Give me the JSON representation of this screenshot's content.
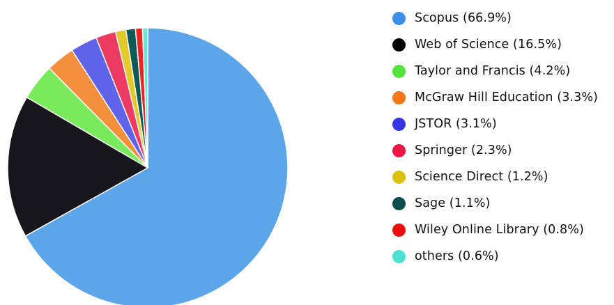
{
  "chart_data": {
    "type": "pie",
    "title": "",
    "legend_position": "right",
    "slices": [
      {
        "label": "Scopus (66.9%)",
        "value": 66.9,
        "color": "#5ca5e8",
        "legend_color": "#3a8fe6"
      },
      {
        "label": "Web of Science (16.5%)",
        "value": 16.5,
        "color": "#17161c",
        "legend_color": "#000000"
      },
      {
        "label": "Taylor and Francis (4.2%)",
        "value": 4.2,
        "color": "#78ea5c",
        "legend_color": "#52e33c"
      },
      {
        "label": "McGraw Hill Education (3.3%)",
        "value": 3.3,
        "color": "#f4903c",
        "legend_color": "#f77616"
      },
      {
        "label": "JSTOR (3.1%)",
        "value": 3.1,
        "color": "#5e63ea",
        "legend_color": "#3436e3"
      },
      {
        "label": "Springer (2.3%)",
        "value": 2.3,
        "color": "#ec3a63",
        "legend_color": "#ec1744"
      },
      {
        "label": "Science Direct (1.2%)",
        "value": 1.2,
        "color": "#e2c92c",
        "legend_color": "#dcc20f"
      },
      {
        "label": "Sage (1.1%)",
        "value": 1.1,
        "color": "#0e5a58",
        "legend_color": "#0b4d4a"
      },
      {
        "label": "Wiley Online Library (0.8%)",
        "value": 0.8,
        "color": "#ee2323",
        "legend_color": "#ec0c0c"
      },
      {
        "label": "others (0.6%)",
        "value": 0.6,
        "color": "#6ee4d8",
        "legend_color": "#4fe0d4"
      }
    ]
  }
}
